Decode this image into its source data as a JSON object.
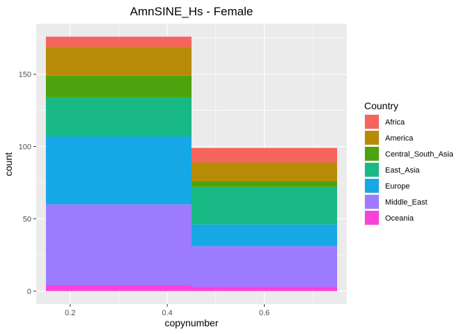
{
  "chart_data": {
    "type": "bar",
    "title": "AmnSINE_Hs - Female",
    "xlabel": "copynumber",
    "ylabel": "count",
    "xlim": [
      0.13,
      0.77
    ],
    "ylim": [
      -9,
      185
    ],
    "xticks": [
      0.2,
      0.4,
      0.6
    ],
    "yticks": [
      0,
      50,
      100,
      150
    ],
    "grid": true,
    "legend_position": "right",
    "legend_title": "Country",
    "bins": [
      {
        "x_start": 0.15,
        "x_end": 0.45
      },
      {
        "x_start": 0.45,
        "x_end": 0.75
      }
    ],
    "series": [
      {
        "name": "Oceania",
        "color": "#FB41D8",
        "values": [
          4,
          3
        ]
      },
      {
        "name": "Middle_East",
        "color": "#9D7BFF",
        "values": [
          56,
          28
        ]
      },
      {
        "name": "Europe",
        "color": "#16A8E6",
        "values": [
          47,
          15
        ]
      },
      {
        "name": "East_Asia",
        "color": "#18B985",
        "values": [
          27,
          26
        ]
      },
      {
        "name": "Central_South_Asia",
        "color": "#4BA40E",
        "values": [
          15,
          4
        ]
      },
      {
        "name": "America",
        "color": "#B88B07",
        "values": [
          20,
          13
        ]
      },
      {
        "name": "Africa",
        "color": "#F7635D",
        "values": [
          7,
          10
        ]
      }
    ],
    "legend_order": [
      "Africa",
      "America",
      "Central_South_Asia",
      "East_Asia",
      "Europe",
      "Middle_East",
      "Oceania"
    ]
  }
}
